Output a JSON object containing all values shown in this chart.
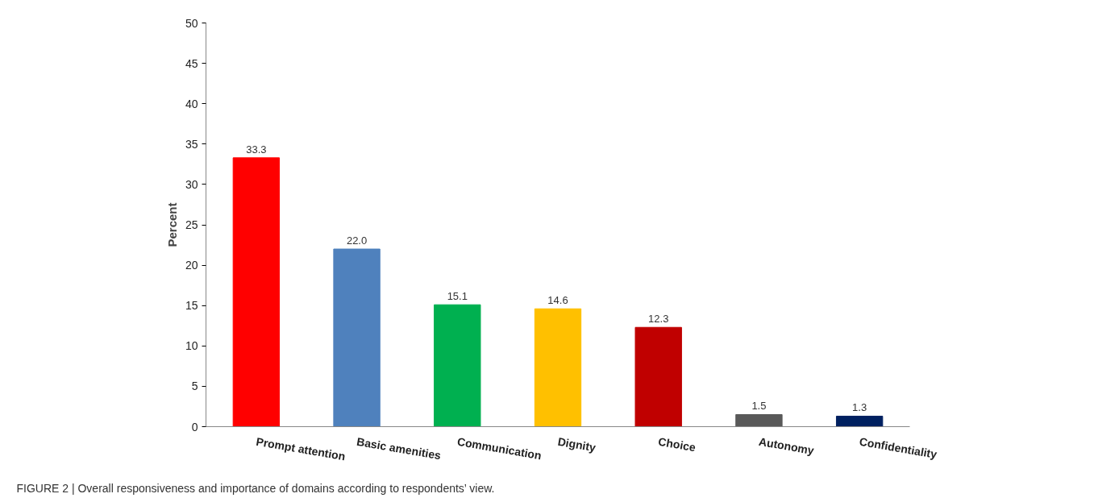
{
  "chart_data": {
    "type": "bar",
    "ylabel": "Percent",
    "categories": [
      "Prompt attention",
      "Basic amenities",
      "Communication",
      "Dignity",
      "Choice",
      "Autonomy",
      "Confidentiality"
    ],
    "values": [
      33.3,
      22.0,
      15.1,
      14.6,
      12.3,
      1.5,
      1.3
    ],
    "colors": [
      "#ff0000",
      "#4f81bd",
      "#00b050",
      "#ffc000",
      "#c00000",
      "#595959",
      "#002060"
    ],
    "value_labels": [
      "33.3",
      "22.0",
      "15.1",
      "14.6",
      "12.3",
      "1.5",
      "1.3"
    ],
    "ylim": [
      0,
      50
    ],
    "yticks": [
      0,
      5,
      10,
      15,
      20,
      25,
      30,
      35,
      40,
      45,
      50
    ],
    "grid": false,
    "annotations": [
      "FIGURE 2 | Overall responsiveness and importance of domains according to respondents’ view."
    ]
  }
}
